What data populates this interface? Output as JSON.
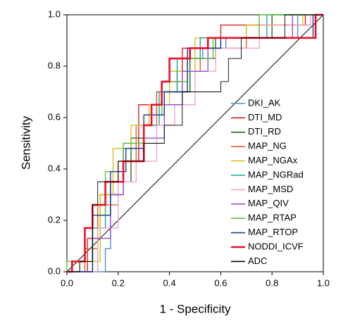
{
  "chart_data": {
    "type": "line",
    "x_label": "1 - Specificity",
    "y_label": "Sensitivity",
    "xlim": [
      0,
      1
    ],
    "ylim": [
      0,
      1
    ],
    "xticks": [
      {
        "value": 0,
        "label": "0.0"
      },
      0.2,
      0.4,
      0.6,
      0.8,
      {
        "value": 1,
        "label": "1.0"
      }
    ],
    "yticks": [
      {
        "value": 0,
        "label": "0.0"
      },
      0.2,
      0.4,
      0.6,
      0.8,
      {
        "value": 1,
        "label": "1.0"
      }
    ],
    "legend": "right",
    "series": [
      {
        "name": "DKI_AK",
        "color": "#4a90d9",
        "x": [
          0,
          0.15,
          0.15,
          0.17,
          0.17,
          0.22,
          0.22,
          0.3,
          0.3,
          0.35,
          0.35,
          0.45,
          0.45,
          0.53,
          0.53,
          0.62,
          0.62,
          0.9,
          0.9,
          1
        ],
        "values": [
          0,
          0,
          0.09,
          0.09,
          0.3,
          0.3,
          0.48,
          0.48,
          0.61,
          0.61,
          0.7,
          0.7,
          0.83,
          0.83,
          0.87,
          0.87,
          0.91,
          0.91,
          1,
          1
        ]
      },
      {
        "name": "DTI_MD",
        "color": "#d8232a",
        "x": [
          0,
          0.08,
          0.08,
          0.13,
          0.13,
          0.2,
          0.2,
          0.28,
          0.28,
          0.37,
          0.37,
          0.45,
          0.45,
          0.6,
          0.6,
          0.93,
          0.93,
          1
        ],
        "values": [
          0,
          0,
          0.13,
          0.13,
          0.3,
          0.3,
          0.43,
          0.43,
          0.65,
          0.65,
          0.74,
          0.74,
          0.87,
          0.87,
          0.96,
          0.96,
          1,
          1
        ]
      },
      {
        "name": "DTI_RD",
        "color": "#1a6e1a",
        "x": [
          0,
          0.12,
          0.12,
          0.17,
          0.17,
          0.25,
          0.25,
          0.3,
          0.3,
          0.38,
          0.38,
          0.48,
          0.48,
          0.58,
          0.58,
          0.8,
          0.8,
          1
        ],
        "values": [
          0,
          0,
          0.22,
          0.22,
          0.35,
          0.35,
          0.52,
          0.52,
          0.61,
          0.61,
          0.7,
          0.7,
          0.83,
          0.83,
          0.91,
          0.91,
          1,
          1
        ]
      },
      {
        "name": "MAP_NG",
        "color": "#e8602c",
        "x": [
          0,
          0.07,
          0.07,
          0.12,
          0.12,
          0.2,
          0.2,
          0.27,
          0.27,
          0.35,
          0.35,
          0.43,
          0.43,
          0.52,
          0.52,
          0.7,
          0.7,
          0.95,
          0.95,
          1
        ],
        "values": [
          0,
          0,
          0.09,
          0.09,
          0.26,
          0.26,
          0.43,
          0.43,
          0.57,
          0.57,
          0.7,
          0.7,
          0.78,
          0.78,
          0.87,
          0.87,
          0.96,
          0.96,
          1,
          1
        ]
      },
      {
        "name": "MAP_NGAx",
        "color": "#d4c41a",
        "x": [
          0,
          0.05,
          0.05,
          0.13,
          0.13,
          0.18,
          0.18,
          0.25,
          0.25,
          0.32,
          0.32,
          0.4,
          0.4,
          0.5,
          0.5,
          0.7,
          0.7,
          0.92,
          0.92,
          1
        ],
        "values": [
          0,
          0,
          0.04,
          0.04,
          0.3,
          0.3,
          0.48,
          0.48,
          0.57,
          0.57,
          0.65,
          0.65,
          0.78,
          0.78,
          0.91,
          0.91,
          0.96,
          0.96,
          1,
          1
        ]
      },
      {
        "name": "MAP_NGRad",
        "color": "#1aa59a",
        "x": [
          0,
          0.1,
          0.1,
          0.15,
          0.15,
          0.22,
          0.22,
          0.3,
          0.3,
          0.36,
          0.36,
          0.43,
          0.43,
          0.52,
          0.52,
          0.78,
          0.78,
          1
        ],
        "values": [
          0,
          0,
          0.17,
          0.17,
          0.35,
          0.35,
          0.48,
          0.48,
          0.57,
          0.57,
          0.7,
          0.7,
          0.83,
          0.83,
          0.91,
          0.91,
          1,
          1
        ]
      },
      {
        "name": "MAP_MSD",
        "color": "#f4a6c8",
        "x": [
          0,
          0.12,
          0.12,
          0.2,
          0.2,
          0.27,
          0.27,
          0.35,
          0.35,
          0.42,
          0.42,
          0.5,
          0.5,
          0.58,
          0.58,
          0.75,
          0.75,
          0.95,
          0.95,
          1
        ],
        "values": [
          0,
          0,
          0.17,
          0.17,
          0.35,
          0.35,
          0.43,
          0.43,
          0.57,
          0.57,
          0.65,
          0.65,
          0.78,
          0.78,
          0.87,
          0.87,
          0.96,
          0.96,
          1,
          1
        ]
      },
      {
        "name": "MAP_QIV",
        "color": "#9b4fd6",
        "x": [
          0,
          0.1,
          0.1,
          0.17,
          0.17,
          0.22,
          0.22,
          0.3,
          0.3,
          0.38,
          0.38,
          0.45,
          0.45,
          0.55,
          0.55,
          0.88,
          0.88,
          1
        ],
        "values": [
          0,
          0,
          0.13,
          0.13,
          0.3,
          0.3,
          0.43,
          0.43,
          0.52,
          0.52,
          0.65,
          0.65,
          0.78,
          0.78,
          0.91,
          0.91,
          1,
          1
        ]
      },
      {
        "name": "MAP_RTAP",
        "color": "#5fbf3a",
        "x": [
          0,
          0,
          0.1,
          0.1,
          0.15,
          0.15,
          0.22,
          0.22,
          0.3,
          0.3,
          0.37,
          0.37,
          0.47,
          0.47,
          0.57,
          0.57,
          0.75,
          0.75,
          1
        ],
        "values": [
          0,
          0.04,
          0.04,
          0.22,
          0.22,
          0.39,
          0.39,
          0.5,
          0.5,
          0.61,
          0.61,
          0.74,
          0.74,
          0.83,
          0.83,
          0.91,
          0.91,
          1,
          1
        ]
      },
      {
        "name": "MAP_RTOP",
        "color": "#1f3e8f",
        "x": [
          0,
          0.1,
          0.1,
          0.17,
          0.17,
          0.23,
          0.23,
          0.3,
          0.3,
          0.38,
          0.38,
          0.47,
          0.47,
          0.6,
          0.6,
          0.96,
          0.96,
          1
        ],
        "values": [
          0,
          0,
          0.22,
          0.22,
          0.39,
          0.39,
          0.48,
          0.48,
          0.61,
          0.61,
          0.7,
          0.7,
          0.87,
          0.87,
          0.91,
          0.91,
          1,
          1
        ]
      },
      {
        "name": "NODDI_ICVF",
        "color": "#e8102a",
        "x": [
          0,
          0.02,
          0.02,
          0.07,
          0.07,
          0.1,
          0.1,
          0.15,
          0.15,
          0.22,
          0.22,
          0.3,
          0.3,
          0.33,
          0.33,
          0.37,
          0.37,
          0.4,
          0.4,
          0.48,
          0.48,
          0.55,
          0.55,
          0.97,
          0.97,
          1
        ],
        "values": [
          0,
          0,
          0.04,
          0.04,
          0.17,
          0.17,
          0.26,
          0.26,
          0.35,
          0.35,
          0.43,
          0.43,
          0.57,
          0.57,
          0.65,
          0.65,
          0.74,
          0.74,
          0.83,
          0.83,
          0.87,
          0.87,
          0.91,
          0.91,
          1,
          1
        ]
      },
      {
        "name": "ADC",
        "color": "#000000",
        "x": [
          0,
          0.05,
          0.05,
          0.1,
          0.1,
          0.12,
          0.12,
          0.2,
          0.2,
          0.3,
          0.3,
          0.38,
          0.38,
          0.45,
          0.45,
          0.6,
          0.6,
          0.63,
          0.63,
          0.68,
          0.68,
          0.85,
          0.85,
          1
        ],
        "values": [
          0,
          0,
          0.04,
          0.04,
          0.26,
          0.26,
          0.35,
          0.35,
          0.43,
          0.43,
          0.5,
          0.5,
          0.57,
          0.57,
          0.7,
          0.7,
          0.74,
          0.74,
          0.83,
          0.83,
          0.91,
          0.91,
          1,
          1
        ]
      }
    ]
  }
}
